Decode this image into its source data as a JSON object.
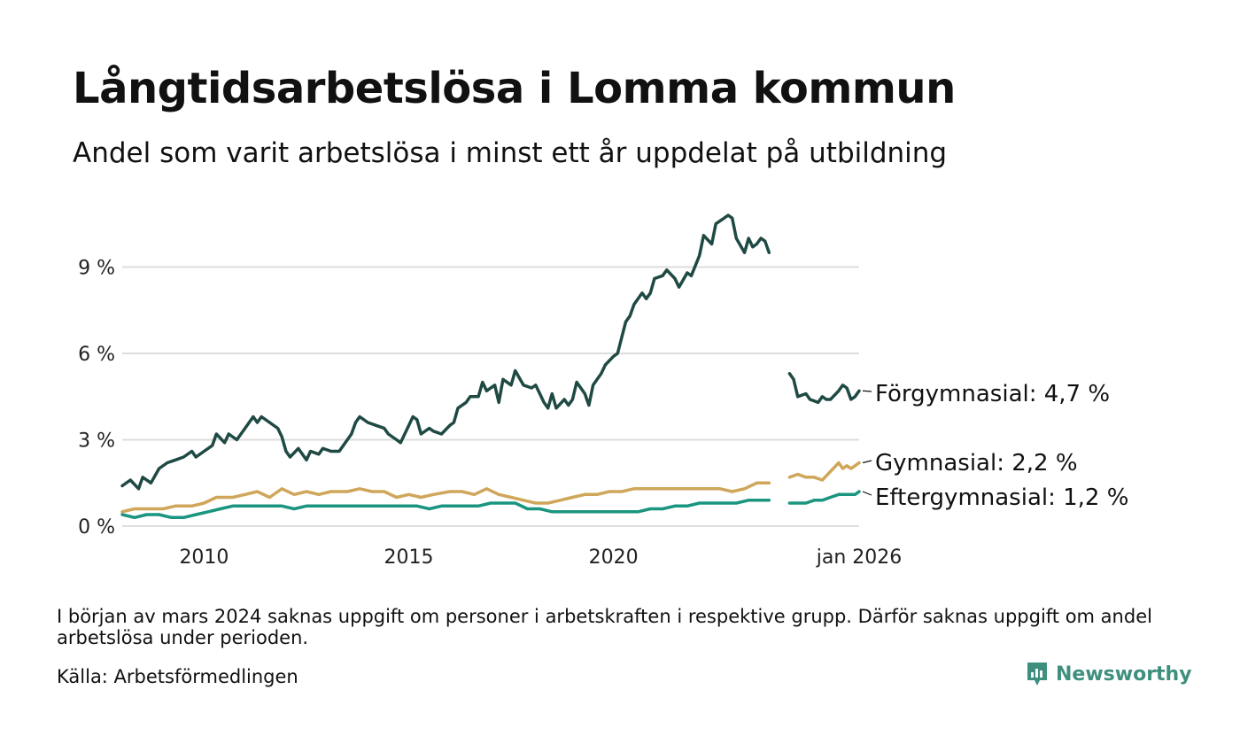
{
  "title": "Långtidsarbetslösa i Lomma kommun",
  "subtitle": "Andel som varit arbetslösa i minst ett år uppdelat på utbildning",
  "note": "I början av mars 2024 saknas uppgift om personer i arbetskraften i respektive grupp. Därför saknas uppgift om andel arbetslösa under perioden.",
  "source": "Källa: Arbetsförmedlingen",
  "brand": "Newsworthy",
  "colors": {
    "forgymnasial": "#1f4a44",
    "gymnasial": "#cfa65a",
    "eftergymnasial": "#1a9580",
    "grid": "#dddddd",
    "brand": "#3f8f7f"
  },
  "chart_data": {
    "type": "line",
    "title": "Långtidsarbetslösa i Lomma kommun",
    "xlabel": "",
    "ylabel": "",
    "x_range": [
      2008.0,
      2026.0
    ],
    "ylim": [
      0,
      11.2
    ],
    "y_ticks": [
      0,
      3,
      6,
      9
    ],
    "y_tick_labels": [
      "0 %",
      "3 %",
      "6 %",
      "9 %"
    ],
    "x_ticks": [
      2010,
      2015,
      2020,
      2026
    ],
    "x_tick_labels": [
      "2010",
      "2015",
      "2020",
      "jan 2026"
    ],
    "gap": [
      2023.8,
      2024.3
    ],
    "series": [
      {
        "name": "Förgymnasial",
        "label": "Förgymnasial: 4,7 %",
        "color_key": "forgymnasial",
        "points": [
          [
            2008.0,
            1.4
          ],
          [
            2008.2,
            1.6
          ],
          [
            2008.4,
            1.3
          ],
          [
            2008.5,
            1.7
          ],
          [
            2008.7,
            1.5
          ],
          [
            2008.9,
            2.0
          ],
          [
            2009.1,
            2.2
          ],
          [
            2009.3,
            2.3
          ],
          [
            2009.5,
            2.4
          ],
          [
            2009.7,
            2.6
          ],
          [
            2009.8,
            2.4
          ],
          [
            2010.0,
            2.6
          ],
          [
            2010.2,
            2.8
          ],
          [
            2010.3,
            3.2
          ],
          [
            2010.5,
            2.9
          ],
          [
            2010.6,
            3.2
          ],
          [
            2010.8,
            3.0
          ],
          [
            2011.0,
            3.4
          ],
          [
            2011.2,
            3.8
          ],
          [
            2011.3,
            3.6
          ],
          [
            2011.4,
            3.8
          ],
          [
            2011.6,
            3.6
          ],
          [
            2011.8,
            3.4
          ],
          [
            2011.9,
            3.1
          ],
          [
            2012.0,
            2.6
          ],
          [
            2012.1,
            2.4
          ],
          [
            2012.3,
            2.7
          ],
          [
            2012.5,
            2.3
          ],
          [
            2012.6,
            2.6
          ],
          [
            2012.8,
            2.5
          ],
          [
            2012.9,
            2.7
          ],
          [
            2013.1,
            2.6
          ],
          [
            2013.3,
            2.6
          ],
          [
            2013.5,
            3.0
          ],
          [
            2013.6,
            3.2
          ],
          [
            2013.7,
            3.6
          ],
          [
            2013.8,
            3.8
          ],
          [
            2014.0,
            3.6
          ],
          [
            2014.2,
            3.5
          ],
          [
            2014.4,
            3.4
          ],
          [
            2014.5,
            3.2
          ],
          [
            2014.7,
            3.0
          ],
          [
            2014.8,
            2.9
          ],
          [
            2015.0,
            3.5
          ],
          [
            2015.1,
            3.8
          ],
          [
            2015.2,
            3.7
          ],
          [
            2015.3,
            3.2
          ],
          [
            2015.5,
            3.4
          ],
          [
            2015.6,
            3.3
          ],
          [
            2015.8,
            3.2
          ],
          [
            2016.0,
            3.5
          ],
          [
            2016.1,
            3.6
          ],
          [
            2016.2,
            4.1
          ],
          [
            2016.4,
            4.3
          ],
          [
            2016.5,
            4.5
          ],
          [
            2016.7,
            4.5
          ],
          [
            2016.8,
            5.0
          ],
          [
            2016.9,
            4.7
          ],
          [
            2017.1,
            4.9
          ],
          [
            2017.2,
            4.3
          ],
          [
            2017.3,
            5.1
          ],
          [
            2017.5,
            4.9
          ],
          [
            2017.6,
            5.4
          ],
          [
            2017.8,
            4.9
          ],
          [
            2018.0,
            4.8
          ],
          [
            2018.1,
            4.9
          ],
          [
            2018.3,
            4.3
          ],
          [
            2018.4,
            4.1
          ],
          [
            2018.5,
            4.6
          ],
          [
            2018.6,
            4.1
          ],
          [
            2018.8,
            4.4
          ],
          [
            2018.9,
            4.2
          ],
          [
            2019.0,
            4.4
          ],
          [
            2019.1,
            5.0
          ],
          [
            2019.3,
            4.6
          ],
          [
            2019.4,
            4.2
          ],
          [
            2019.5,
            4.9
          ],
          [
            2019.7,
            5.3
          ],
          [
            2019.8,
            5.6
          ],
          [
            2020.0,
            5.9
          ],
          [
            2020.1,
            6.0
          ],
          [
            2020.3,
            7.1
          ],
          [
            2020.4,
            7.3
          ],
          [
            2020.5,
            7.7
          ],
          [
            2020.7,
            8.1
          ],
          [
            2020.8,
            7.9
          ],
          [
            2020.9,
            8.1
          ],
          [
            2021.0,
            8.6
          ],
          [
            2021.2,
            8.7
          ],
          [
            2021.3,
            8.9
          ],
          [
            2021.5,
            8.6
          ],
          [
            2021.6,
            8.3
          ],
          [
            2021.8,
            8.8
          ],
          [
            2021.9,
            8.7
          ],
          [
            2022.1,
            9.4
          ],
          [
            2022.2,
            10.1
          ],
          [
            2022.4,
            9.8
          ],
          [
            2022.5,
            10.5
          ],
          [
            2022.7,
            10.7
          ],
          [
            2022.8,
            10.8
          ],
          [
            2022.9,
            10.7
          ],
          [
            2023.0,
            10.0
          ],
          [
            2023.2,
            9.5
          ],
          [
            2023.3,
            10.0
          ],
          [
            2023.4,
            9.7
          ],
          [
            2023.5,
            9.8
          ],
          [
            2023.6,
            10.0
          ],
          [
            2023.7,
            9.9
          ],
          [
            2023.8,
            9.5
          ]
        ]
      },
      {
        "name": "Gymnasial",
        "label": "Gymnasial: 2,2 %",
        "color_key": "gymnasial",
        "points": [
          [
            2008.0,
            0.5
          ],
          [
            2008.3,
            0.6
          ],
          [
            2008.7,
            0.6
          ],
          [
            2009.0,
            0.6
          ],
          [
            2009.3,
            0.7
          ],
          [
            2009.7,
            0.7
          ],
          [
            2010.0,
            0.8
          ],
          [
            2010.3,
            1.0
          ],
          [
            2010.7,
            1.0
          ],
          [
            2011.0,
            1.1
          ],
          [
            2011.3,
            1.2
          ],
          [
            2011.6,
            1.0
          ],
          [
            2011.9,
            1.3
          ],
          [
            2012.2,
            1.1
          ],
          [
            2012.5,
            1.2
          ],
          [
            2012.8,
            1.1
          ],
          [
            2013.1,
            1.2
          ],
          [
            2013.5,
            1.2
          ],
          [
            2013.8,
            1.3
          ],
          [
            2014.1,
            1.2
          ],
          [
            2014.4,
            1.2
          ],
          [
            2014.7,
            1.0
          ],
          [
            2015.0,
            1.1
          ],
          [
            2015.3,
            1.0
          ],
          [
            2015.6,
            1.1
          ],
          [
            2016.0,
            1.2
          ],
          [
            2016.3,
            1.2
          ],
          [
            2016.6,
            1.1
          ],
          [
            2016.9,
            1.3
          ],
          [
            2017.2,
            1.1
          ],
          [
            2017.5,
            1.0
          ],
          [
            2017.8,
            0.9
          ],
          [
            2018.1,
            0.8
          ],
          [
            2018.4,
            0.8
          ],
          [
            2018.7,
            0.9
          ],
          [
            2019.0,
            1.0
          ],
          [
            2019.3,
            1.1
          ],
          [
            2019.6,
            1.1
          ],
          [
            2019.9,
            1.2
          ],
          [
            2020.2,
            1.2
          ],
          [
            2020.5,
            1.3
          ],
          [
            2020.8,
            1.3
          ],
          [
            2021.1,
            1.3
          ],
          [
            2021.4,
            1.3
          ],
          [
            2021.7,
            1.3
          ],
          [
            2022.0,
            1.3
          ],
          [
            2022.3,
            1.3
          ],
          [
            2022.6,
            1.3
          ],
          [
            2022.9,
            1.2
          ],
          [
            2023.2,
            1.3
          ],
          [
            2023.5,
            1.5
          ],
          [
            2023.8,
            1.5
          ]
        ]
      },
      {
        "name": "Eftergymnasial",
        "label": "Eftergymnasial: 1,2 %",
        "color_key": "eftergymnasial",
        "points": [
          [
            2008.0,
            0.4
          ],
          [
            2008.3,
            0.3
          ],
          [
            2008.6,
            0.4
          ],
          [
            2008.9,
            0.4
          ],
          [
            2009.2,
            0.3
          ],
          [
            2009.5,
            0.3
          ],
          [
            2009.8,
            0.4
          ],
          [
            2010.1,
            0.5
          ],
          [
            2010.4,
            0.6
          ],
          [
            2010.7,
            0.7
          ],
          [
            2011.0,
            0.7
          ],
          [
            2011.3,
            0.7
          ],
          [
            2011.6,
            0.7
          ],
          [
            2011.9,
            0.7
          ],
          [
            2012.2,
            0.6
          ],
          [
            2012.5,
            0.7
          ],
          [
            2012.8,
            0.7
          ],
          [
            2013.1,
            0.7
          ],
          [
            2013.4,
            0.7
          ],
          [
            2013.7,
            0.7
          ],
          [
            2014.0,
            0.7
          ],
          [
            2014.3,
            0.7
          ],
          [
            2014.6,
            0.7
          ],
          [
            2014.9,
            0.7
          ],
          [
            2015.2,
            0.7
          ],
          [
            2015.5,
            0.6
          ],
          [
            2015.8,
            0.7
          ],
          [
            2016.1,
            0.7
          ],
          [
            2016.4,
            0.7
          ],
          [
            2016.7,
            0.7
          ],
          [
            2017.0,
            0.8
          ],
          [
            2017.3,
            0.8
          ],
          [
            2017.6,
            0.8
          ],
          [
            2017.9,
            0.6
          ],
          [
            2018.2,
            0.6
          ],
          [
            2018.5,
            0.5
          ],
          [
            2018.8,
            0.5
          ],
          [
            2019.1,
            0.5
          ],
          [
            2019.4,
            0.5
          ],
          [
            2019.7,
            0.5
          ],
          [
            2020.0,
            0.5
          ],
          [
            2020.3,
            0.5
          ],
          [
            2020.6,
            0.5
          ],
          [
            2020.9,
            0.6
          ],
          [
            2021.2,
            0.6
          ],
          [
            2021.5,
            0.7
          ],
          [
            2021.8,
            0.7
          ],
          [
            2022.1,
            0.8
          ],
          [
            2022.4,
            0.8
          ],
          [
            2022.7,
            0.8
          ],
          [
            2023.0,
            0.8
          ],
          [
            2023.3,
            0.9
          ],
          [
            2023.6,
            0.9
          ],
          [
            2023.8,
            0.9
          ]
        ]
      }
    ],
    "series_after_gap": [
      {
        "name": "Förgymnasial",
        "points": [
          [
            2024.3,
            5.3
          ],
          [
            2024.4,
            5.1
          ],
          [
            2024.5,
            4.5
          ],
          [
            2024.7,
            4.6
          ],
          [
            2024.8,
            4.4
          ],
          [
            2025.0,
            4.3
          ],
          [
            2025.1,
            4.5
          ],
          [
            2025.2,
            4.4
          ],
          [
            2025.3,
            4.4
          ],
          [
            2025.5,
            4.7
          ],
          [
            2025.6,
            4.9
          ],
          [
            2025.7,
            4.8
          ],
          [
            2025.8,
            4.4
          ],
          [
            2025.9,
            4.5
          ],
          [
            2026.0,
            4.7
          ]
        ]
      },
      {
        "name": "Gymnasial",
        "points": [
          [
            2024.3,
            1.7
          ],
          [
            2024.5,
            1.8
          ],
          [
            2024.7,
            1.7
          ],
          [
            2024.9,
            1.7
          ],
          [
            2025.1,
            1.6
          ],
          [
            2025.3,
            1.9
          ],
          [
            2025.5,
            2.2
          ],
          [
            2025.6,
            2.0
          ],
          [
            2025.7,
            2.1
          ],
          [
            2025.8,
            2.0
          ],
          [
            2025.9,
            2.1
          ],
          [
            2026.0,
            2.2
          ]
        ]
      },
      {
        "name": "Eftergymnasial",
        "points": [
          [
            2024.3,
            0.8
          ],
          [
            2024.5,
            0.8
          ],
          [
            2024.7,
            0.8
          ],
          [
            2024.9,
            0.9
          ],
          [
            2025.1,
            0.9
          ],
          [
            2025.3,
            1.0
          ],
          [
            2025.5,
            1.1
          ],
          [
            2025.7,
            1.1
          ],
          [
            2025.9,
            1.1
          ],
          [
            2026.0,
            1.2
          ]
        ]
      }
    ]
  }
}
